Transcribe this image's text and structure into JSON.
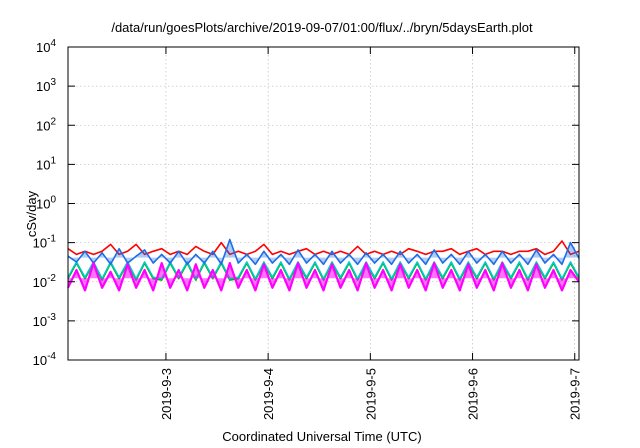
{
  "chart_data": {
    "type": "line",
    "title": "/data/run/goesPlots/archive/2019-09-07/01:00/flux/../bryn/5daysEarth.plot",
    "xlabel": "Coordinated Universal Time (UTC)",
    "ylabel": "cSv/day",
    "yscale": "log",
    "ylim": [
      0.0001,
      10000
    ],
    "xlim": [
      "2019-09-02T01:00",
      "2019-09-07T01:00"
    ],
    "grid": true,
    "legend": "none",
    "y_ticks": [
      {
        "base": "10",
        "exp": "-4"
      },
      {
        "base": "10",
        "exp": "-3"
      },
      {
        "base": "10",
        "exp": "-2"
      },
      {
        "base": "10",
        "exp": "-1"
      },
      {
        "base": "10",
        "exp": "0"
      },
      {
        "base": "10",
        "exp": "1"
      },
      {
        "base": "10",
        "exp": "2"
      },
      {
        "base": "10",
        "exp": "3"
      },
      {
        "base": "10",
        "exp": "4"
      }
    ],
    "x_ticks": [
      "2019-9-3",
      "2019-9-4",
      "2019-9-5",
      "2019-9-6",
      "2019-9-7"
    ],
    "x_tick_dates": [
      "2019-09-03T00:00",
      "2019-09-04T00:00",
      "2019-09-05T00:00",
      "2019-09-06T00:00",
      "2019-09-07T00:00"
    ],
    "x": [
      "2019-09-02T01:00",
      "2019-09-02T03:00",
      "2019-09-02T05:00",
      "2019-09-02T07:00",
      "2019-09-02T09:00",
      "2019-09-02T11:00",
      "2019-09-02T13:00",
      "2019-09-02T15:00",
      "2019-09-02T17:00",
      "2019-09-02T19:00",
      "2019-09-02T21:00",
      "2019-09-02T23:00",
      "2019-09-03T01:00",
      "2019-09-03T03:00",
      "2019-09-03T05:00",
      "2019-09-03T07:00",
      "2019-09-03T09:00",
      "2019-09-03T11:00",
      "2019-09-03T13:00",
      "2019-09-03T15:00",
      "2019-09-03T17:00",
      "2019-09-03T19:00",
      "2019-09-03T21:00",
      "2019-09-03T23:00",
      "2019-09-04T01:00",
      "2019-09-04T03:00",
      "2019-09-04T05:00",
      "2019-09-04T07:00",
      "2019-09-04T09:00",
      "2019-09-04T11:00",
      "2019-09-04T13:00",
      "2019-09-04T15:00",
      "2019-09-04T17:00",
      "2019-09-04T19:00",
      "2019-09-04T21:00",
      "2019-09-04T23:00",
      "2019-09-05T01:00",
      "2019-09-05T03:00",
      "2019-09-05T05:00",
      "2019-09-05T07:00",
      "2019-09-05T09:00",
      "2019-09-05T11:00",
      "2019-09-05T13:00",
      "2019-09-05T15:00",
      "2019-09-05T17:00",
      "2019-09-05T19:00",
      "2019-09-05T21:00",
      "2019-09-05T23:00",
      "2019-09-06T01:00",
      "2019-09-06T03:00",
      "2019-09-06T05:00",
      "2019-09-06T07:00",
      "2019-09-06T09:00",
      "2019-09-06T11:00",
      "2019-09-06T13:00",
      "2019-09-06T15:00",
      "2019-09-06T17:00",
      "2019-09-06T19:00",
      "2019-09-06T21:00",
      "2019-09-06T23:00",
      "2019-09-07T01:00"
    ],
    "series": [
      {
        "color": "#ff0000",
        "values": [
          0.07,
          0.05,
          0.06,
          0.05,
          0.06,
          0.09,
          0.05,
          0.06,
          0.09,
          0.05,
          0.06,
          0.07,
          0.05,
          0.06,
          0.05,
          0.08,
          0.06,
          0.05,
          0.1,
          0.05,
          0.06,
          0.05,
          0.06,
          0.09,
          0.05,
          0.06,
          0.05,
          0.06,
          0.07,
          0.05,
          0.06,
          0.05,
          0.06,
          0.05,
          0.08,
          0.05,
          0.06,
          0.05,
          0.06,
          0.05,
          0.07,
          0.06,
          0.05,
          0.06,
          0.06,
          0.07,
          0.05,
          0.06,
          0.07,
          0.05,
          0.06,
          0.06,
          0.05,
          0.06,
          0.06,
          0.07,
          0.05,
          0.06,
          0.11,
          0.05,
          0.06
        ]
      },
      {
        "color": "#00b000",
        "values": [
          0.012,
          0.03,
          0.012,
          0.03,
          0.011,
          0.03,
          0.012,
          0.03,
          0.011,
          0.03,
          0.012,
          0.011,
          0.03,
          0.012,
          0.03,
          0.011,
          0.03,
          0.012,
          0.03,
          0.011,
          0.012,
          0.03,
          0.011,
          0.03,
          0.012,
          0.03,
          0.011,
          0.03,
          0.012,
          0.03,
          0.011,
          0.03,
          0.012,
          0.03,
          0.011,
          0.03,
          0.012,
          0.03,
          0.011,
          0.03,
          0.012,
          0.03,
          0.011,
          0.03,
          0.012,
          0.03,
          0.011,
          0.03,
          0.012,
          0.03,
          0.011,
          0.03,
          0.012,
          0.03,
          0.011,
          0.03,
          0.012,
          0.03,
          0.011,
          0.03,
          0.012
        ]
      },
      {
        "color": "#00c8c8",
        "values": [
          0.013,
          0.032,
          0.013,
          0.032,
          0.012,
          0.032,
          0.013,
          0.032,
          0.012,
          0.032,
          0.013,
          0.012,
          0.032,
          0.013,
          0.032,
          0.012,
          0.032,
          0.013,
          0.032,
          0.012,
          0.013,
          0.032,
          0.012,
          0.032,
          0.013,
          0.032,
          0.012,
          0.032,
          0.013,
          0.032,
          0.012,
          0.032,
          0.013,
          0.032,
          0.012,
          0.032,
          0.013,
          0.032,
          0.012,
          0.032,
          0.013,
          0.032,
          0.012,
          0.032,
          0.013,
          0.032,
          0.012,
          0.032,
          0.013,
          0.032,
          0.012,
          0.032,
          0.013,
          0.032,
          0.012,
          0.032,
          0.013,
          0.032,
          0.012,
          0.032,
          0.013
        ]
      },
      {
        "color": "#1e6ee6",
        "values": [
          0.045,
          0.032,
          0.06,
          0.03,
          0.055,
          0.028,
          0.07,
          0.03,
          0.045,
          0.065,
          0.03,
          0.05,
          0.03,
          0.06,
          0.028,
          0.05,
          0.03,
          0.06,
          0.028,
          0.12,
          0.03,
          0.05,
          0.028,
          0.06,
          0.03,
          0.05,
          0.028,
          0.065,
          0.03,
          0.05,
          0.028,
          0.06,
          0.03,
          0.05,
          0.028,
          0.055,
          0.03,
          0.05,
          0.028,
          0.06,
          0.03,
          0.05,
          0.028,
          0.065,
          0.03,
          0.05,
          0.028,
          0.06,
          0.03,
          0.05,
          0.028,
          0.06,
          0.03,
          0.05,
          0.028,
          0.065,
          0.03,
          0.05,
          0.028,
          0.1,
          0.04
        ]
      },
      {
        "color": "#ff00ff",
        "values": [
          0.007,
          0.02,
          0.006,
          0.03,
          0.007,
          0.018,
          0.006,
          0.028,
          0.007,
          0.02,
          0.006,
          0.03,
          0.007,
          0.02,
          0.006,
          0.028,
          0.007,
          0.02,
          0.006,
          0.03,
          0.007,
          0.02,
          0.006,
          0.028,
          0.007,
          0.02,
          0.006,
          0.03,
          0.007,
          0.02,
          0.006,
          0.028,
          0.007,
          0.02,
          0.006,
          0.03,
          0.007,
          0.02,
          0.006,
          0.028,
          0.007,
          0.02,
          0.006,
          0.03,
          0.007,
          0.02,
          0.006,
          0.028,
          0.007,
          0.02,
          0.006,
          0.03,
          0.007,
          0.02,
          0.006,
          0.028,
          0.007,
          0.02,
          0.006,
          0.02,
          0.01
        ]
      }
    ]
  }
}
